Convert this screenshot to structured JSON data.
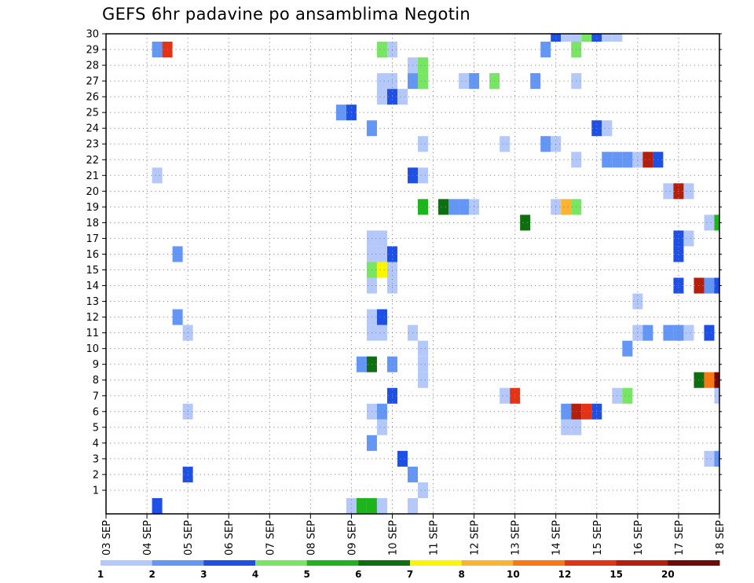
{
  "chart_data": {
    "type": "heatmap",
    "title": "GEFS 6hr padavine po ansamblima Negotin",
    "xlabel": "",
    "ylabel": "",
    "x_ticks": [
      "03 SEP",
      "04 SEP",
      "05 SEP",
      "06 SEP",
      "07 SEP",
      "08 SEP",
      "09 SEP",
      "10 SEP",
      "11 SEP",
      "12 SEP",
      "13 SEP",
      "14 SEP",
      "15 SEP",
      "16 SEP",
      "17 SEP",
      "18 SEP"
    ],
    "x_range": [
      3,
      18
    ],
    "y_range": [
      0,
      30
    ],
    "y_ticks": [
      1,
      2,
      3,
      4,
      5,
      6,
      7,
      8,
      9,
      10,
      11,
      12,
      13,
      14,
      15,
      16,
      17,
      18,
      19,
      20,
      21,
      22,
      23,
      24,
      25,
      26,
      27,
      28,
      29,
      30
    ],
    "grid": true,
    "colorbar": {
      "orientation": "horizontal",
      "position": "bottom",
      "labels": [
        "1",
        "2",
        "3",
        "4",
        "5",
        "6",
        "7",
        "8",
        "10",
        "12",
        "15",
        "20"
      ],
      "colors": [
        "#b4c8fa",
        "#6496f5",
        "#1e50e6",
        "#78e664",
        "#1eb41e",
        "#0f6e0f",
        "#faf500",
        "#fab432",
        "#fa7814",
        "#e63214",
        "#b41e0a",
        "#6e0a0a"
      ]
    },
    "cells": [
      [
        0,
        4.25,
        3
      ],
      [
        0,
        9.0,
        1
      ],
      [
        0,
        9.25,
        5
      ],
      [
        0,
        9.5,
        5
      ],
      [
        0,
        9.75,
        1
      ],
      [
        0,
        10.5,
        1
      ],
      [
        1,
        10.75,
        1
      ],
      [
        2,
        5.0,
        3
      ],
      [
        2,
        10.5,
        2
      ],
      [
        3,
        10.25,
        3
      ],
      [
        3,
        17.75,
        1
      ],
      [
        3,
        18.0,
        2
      ],
      [
        4,
        9.5,
        2
      ],
      [
        5,
        9.75,
        1
      ],
      [
        5,
        14.25,
        1
      ],
      [
        5,
        14.5,
        1
      ],
      [
        6,
        5.0,
        1
      ],
      [
        6,
        9.5,
        1
      ],
      [
        6,
        9.75,
        2
      ],
      [
        6,
        14.25,
        2
      ],
      [
        6,
        14.5,
        11
      ],
      [
        6,
        14.75,
        10
      ],
      [
        6,
        15.0,
        3
      ],
      [
        7,
        10.0,
        3
      ],
      [
        7,
        12.75,
        1
      ],
      [
        7,
        13.0,
        10
      ],
      [
        7,
        15.5,
        1
      ],
      [
        7,
        15.75,
        4
      ],
      [
        7,
        18.0,
        1
      ],
      [
        8,
        10.75,
        1
      ],
      [
        8,
        17.5,
        6
      ],
      [
        8,
        17.75,
        9
      ],
      [
        8,
        18.0,
        12
      ],
      [
        9,
        9.25,
        2
      ],
      [
        9,
        9.5,
        6
      ],
      [
        9,
        10.0,
        2
      ],
      [
        9,
        10.75,
        1
      ],
      [
        10,
        10.75,
        1
      ],
      [
        10,
        15.75,
        2
      ],
      [
        11,
        5.0,
        1
      ],
      [
        11,
        9.5,
        1
      ],
      [
        11,
        9.75,
        1
      ],
      [
        11,
        10.5,
        1
      ],
      [
        11,
        16.0,
        1
      ],
      [
        11,
        16.25,
        2
      ],
      [
        11,
        16.75,
        2
      ],
      [
        11,
        17.0,
        2
      ],
      [
        11,
        17.25,
        1
      ],
      [
        11,
        17.75,
        3
      ],
      [
        12,
        4.75,
        2
      ],
      [
        12,
        9.5,
        1
      ],
      [
        12,
        9.75,
        3
      ],
      [
        13,
        16.0,
        1
      ],
      [
        14,
        9.5,
        1
      ],
      [
        14,
        10.0,
        1
      ],
      [
        14,
        17.0,
        3
      ],
      [
        14,
        17.5,
        11
      ],
      [
        14,
        17.75,
        2
      ],
      [
        14,
        18.0,
        3
      ],
      [
        15,
        9.5,
        4
      ],
      [
        15,
        9.75,
        7
      ],
      [
        15,
        10.0,
        1
      ],
      [
        16,
        4.75,
        2
      ],
      [
        16,
        9.5,
        1
      ],
      [
        16,
        9.75,
        1
      ],
      [
        16,
        10.0,
        3
      ],
      [
        16,
        17.0,
        3
      ],
      [
        17,
        9.5,
        1
      ],
      [
        17,
        9.75,
        1
      ],
      [
        17,
        17.0,
        3
      ],
      [
        17,
        17.25,
        1
      ],
      [
        18,
        13.25,
        6
      ],
      [
        18,
        17.75,
        1
      ],
      [
        18,
        18.0,
        5
      ],
      [
        19,
        10.75,
        5
      ],
      [
        19,
        11.25,
        6
      ],
      [
        19,
        11.5,
        2
      ],
      [
        19,
        11.75,
        2
      ],
      [
        19,
        12.0,
        1
      ],
      [
        19,
        14.0,
        1
      ],
      [
        19,
        14.25,
        8
      ],
      [
        19,
        14.5,
        4
      ],
      [
        20,
        16.75,
        1
      ],
      [
        20,
        17.0,
        11
      ],
      [
        20,
        17.25,
        1
      ],
      [
        21,
        4.25,
        1
      ],
      [
        21,
        10.5,
        3
      ],
      [
        21,
        10.75,
        1
      ],
      [
        22,
        14.5,
        1
      ],
      [
        22,
        15.25,
        2
      ],
      [
        22,
        15.5,
        2
      ],
      [
        22,
        15.75,
        2
      ],
      [
        22,
        16.0,
        1
      ],
      [
        22,
        16.25,
        11
      ],
      [
        22,
        16.5,
        3
      ],
      [
        23,
        10.75,
        1
      ],
      [
        23,
        12.75,
        1
      ],
      [
        23,
        13.75,
        2
      ],
      [
        23,
        14.0,
        1
      ],
      [
        24,
        9.5,
        2
      ],
      [
        24,
        15.0,
        3
      ],
      [
        24,
        15.25,
        1
      ],
      [
        25,
        8.75,
        2
      ],
      [
        25,
        9.0,
        3
      ],
      [
        26,
        9.75,
        1
      ],
      [
        26,
        10.0,
        3
      ],
      [
        26,
        10.25,
        1
      ],
      [
        27,
        9.75,
        1
      ],
      [
        27,
        10.0,
        1
      ],
      [
        27,
        10.5,
        2
      ],
      [
        27,
        10.75,
        4
      ],
      [
        27,
        11.75,
        1
      ],
      [
        27,
        12.0,
        2
      ],
      [
        27,
        12.5,
        4
      ],
      [
        27,
        13.5,
        2
      ],
      [
        27,
        14.5,
        1
      ],
      [
        28,
        10.5,
        1
      ],
      [
        28,
        10.75,
        4
      ],
      [
        29,
        4.25,
        2
      ],
      [
        29,
        4.5,
        10
      ],
      [
        29,
        9.75,
        4
      ],
      [
        29,
        10.0,
        1
      ],
      [
        29,
        13.75,
        2
      ],
      [
        29,
        14.5,
        4
      ],
      [
        30,
        14.0,
        3
      ],
      [
        30,
        14.25,
        1
      ],
      [
        30,
        14.5,
        1
      ],
      [
        30,
        14.75,
        4
      ],
      [
        30,
        15.0,
        3
      ],
      [
        30,
        15.25,
        1
      ],
      [
        30,
        15.5,
        1
      ]
    ]
  }
}
